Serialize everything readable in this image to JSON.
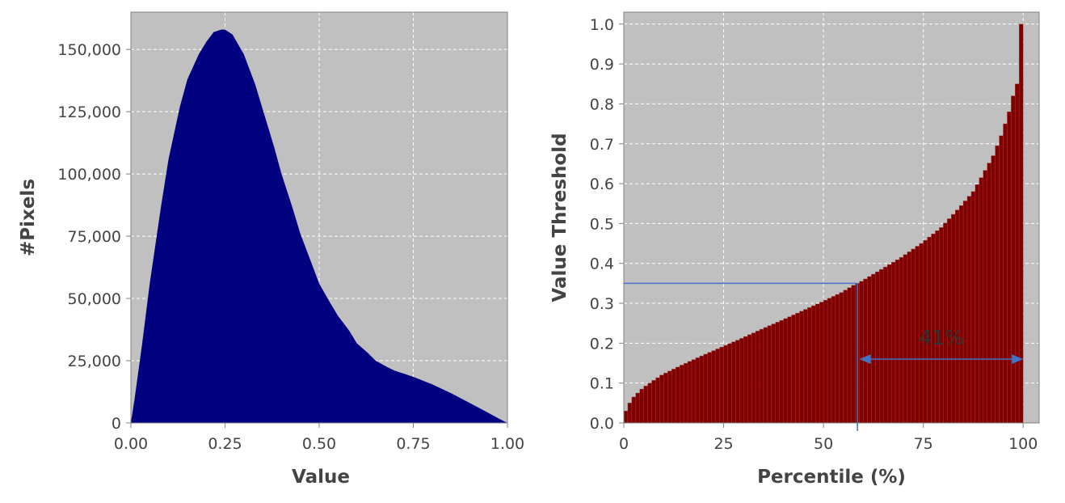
{
  "chart_data": [
    {
      "type": "area",
      "title": "",
      "xlabel": "Value",
      "ylabel": "#Pixels",
      "xlim": [
        0,
        1
      ],
      "ylim": [
        0,
        165000
      ],
      "grid": true,
      "background": "#c0c0c0",
      "fill_color": "#000080",
      "x_ticks": [
        "0.00",
        "0.25",
        "0.50",
        "0.75",
        "1.00"
      ],
      "y_ticks": [
        "0",
        "25,000",
        "50,000",
        "75,000",
        "100,000",
        "125,000",
        "150,000"
      ],
      "series": [
        {
          "x": [
            0.0,
            0.01,
            0.03,
            0.05,
            0.08,
            0.1,
            0.13,
            0.15,
            0.18,
            0.2,
            0.22,
            0.24,
            0.25,
            0.27,
            0.3,
            0.33,
            0.35,
            0.38,
            0.4,
            0.43,
            0.45,
            0.48,
            0.5,
            0.53,
            0.55,
            0.58,
            0.6,
            0.63,
            0.65,
            0.68,
            0.7,
            0.75,
            0.8,
            0.85,
            0.9,
            0.95,
            0.98,
            1.0
          ],
          "values": [
            0,
            10000,
            32000,
            56000,
            87000,
            106000,
            127000,
            138000,
            148000,
            153000,
            157000,
            158000,
            158000,
            156000,
            148000,
            136000,
            126000,
            111000,
            100000,
            86000,
            76000,
            64000,
            56000,
            48000,
            43000,
            37000,
            32000,
            28000,
            25000,
            22500,
            21000,
            18500,
            15500,
            12000,
            8000,
            4000,
            1500,
            0
          ]
        }
      ]
    },
    {
      "type": "bar",
      "title": "",
      "xlabel": "Percentile (%)",
      "ylabel": "Value Threshold",
      "xlim": [
        0,
        104
      ],
      "ylim": [
        0,
        1.03
      ],
      "grid": true,
      "background": "#c0c0c0",
      "bar_color": "#800000",
      "x_ticks": [
        "0",
        "25",
        "50",
        "75",
        "100"
      ],
      "y_ticks": [
        "0.0",
        "0.1",
        "0.2",
        "0.3",
        "0.4",
        "0.5",
        "0.6",
        "0.7",
        "0.8",
        "0.9",
        "1.0"
      ],
      "curve_points": {
        "percentile": [
          1,
          2,
          3,
          5,
          7,
          10,
          15,
          20,
          25,
          30,
          35,
          40,
          45,
          50,
          55,
          58,
          60,
          65,
          70,
          75,
          80,
          85,
          88,
          90,
          93,
          95,
          96,
          97,
          98,
          99,
          100
        ],
        "threshold": [
          0.03,
          0.05,
          0.065,
          0.085,
          0.1,
          0.12,
          0.145,
          0.168,
          0.19,
          0.212,
          0.235,
          0.257,
          0.28,
          0.303,
          0.327,
          0.345,
          0.355,
          0.385,
          0.415,
          0.45,
          0.49,
          0.545,
          0.58,
          0.615,
          0.67,
          0.72,
          0.75,
          0.78,
          0.82,
          0.85,
          1.0
        ]
      },
      "annotation": {
        "text": "41%",
        "marker_percentile": 58.5,
        "marker_threshold": 0.35,
        "arrow_from_percentile": 59,
        "arrow_to_percentile": 100,
        "arrow_threshold": 0.16,
        "line_color": "#4472c4"
      }
    }
  ]
}
